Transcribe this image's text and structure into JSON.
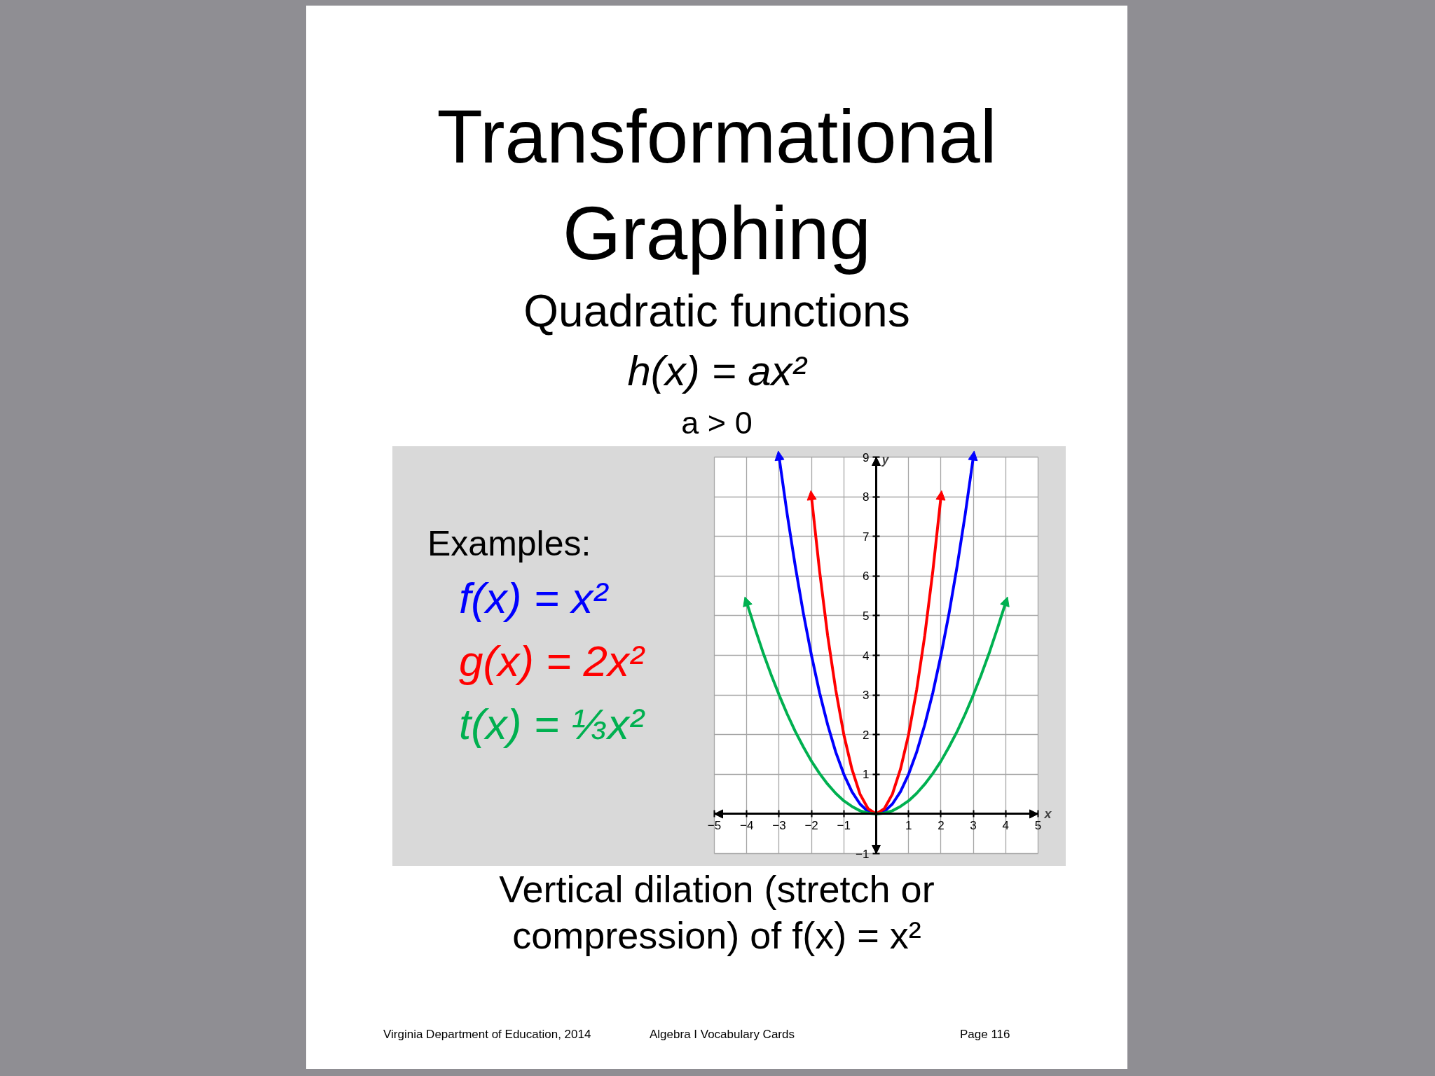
{
  "chart_data": {
    "type": "line",
    "title": "Transformational Graphing",
    "subtitle": "Quadratic functions",
    "xlabel": "x",
    "ylabel": "y",
    "legend_title": "Examples:",
    "legend": "left",
    "xlim": [
      -5,
      5
    ],
    "ylim": [
      -1,
      9
    ],
    "xticks": [
      -5,
      -4,
      -3,
      -2,
      -1,
      {
        "value": 0,
        "label": null
      },
      1,
      2,
      3,
      4,
      5
    ],
    "yticks": [
      -1,
      {
        "value": 0,
        "label": null
      },
      1,
      2,
      3,
      4,
      5,
      6,
      7,
      8,
      9
    ],
    "grid": true,
    "series": [
      {
        "name": "f(x) = x²",
        "color": "#0000ff",
        "x": [
          -3,
          -2.75,
          -2.5,
          -2.25,
          -2,
          -1.75,
          -1.5,
          -1.25,
          -1,
          -0.75,
          -0.5,
          -0.25,
          0,
          0.25,
          0.5,
          0.75,
          1,
          1.25,
          1.5,
          1.75,
          2,
          2.25,
          2.5,
          2.75,
          3
        ],
        "values": [
          9,
          7.56,
          6.25,
          5.06,
          4,
          3.06,
          2.25,
          1.56,
          1,
          0.56,
          0.25,
          0.06,
          0,
          0.06,
          0.25,
          0.56,
          1,
          1.56,
          2.25,
          3.06,
          4,
          5.06,
          6.25,
          7.56,
          9
        ]
      },
      {
        "name": "g(x) = 2x²",
        "color": "#ff0000",
        "x": [
          -2,
          -1.75,
          -1.5,
          -1.25,
          -1,
          -0.75,
          -0.5,
          -0.25,
          0,
          0.25,
          0.5,
          0.75,
          1,
          1.25,
          1.5,
          1.75,
          2
        ],
        "values": [
          8,
          6.13,
          4.5,
          3.13,
          2,
          1.13,
          0.5,
          0.13,
          0,
          0.13,
          0.5,
          1.13,
          2,
          3.13,
          4.5,
          6.13,
          8
        ]
      },
      {
        "name": "t(x) = ⅓x²",
        "color": "#00b050",
        "x": [
          -4,
          -3.75,
          -3.5,
          -3.25,
          -3,
          -2.75,
          -2.5,
          -2.25,
          -2,
          -1.75,
          -1.5,
          -1.25,
          -1,
          -0.75,
          -0.5,
          -0.25,
          0,
          0.25,
          0.5,
          0.75,
          1,
          1.25,
          1.5,
          1.75,
          2,
          2.25,
          2.5,
          2.75,
          3,
          3.25,
          3.5,
          3.75,
          4
        ],
        "values": [
          5.33,
          4.69,
          4.08,
          3.52,
          3,
          2.52,
          2.08,
          1.69,
          1.33,
          1.02,
          0.75,
          0.52,
          0.33,
          0.19,
          0.08,
          0.02,
          0,
          0.02,
          0.08,
          0.19,
          0.33,
          0.52,
          0.75,
          1.02,
          1.33,
          1.69,
          2.08,
          2.52,
          3,
          3.52,
          4.08,
          4.69,
          5.33
        ]
      }
    ],
    "annotations": [
      "h(x) = ax²",
      "a > 0",
      "Vertical dilation (stretch or compression) of f(x) = x²",
      "Virginia Department of Education, 2014",
      "Algebra I Vocabulary Cards",
      "Page 116"
    ]
  }
}
